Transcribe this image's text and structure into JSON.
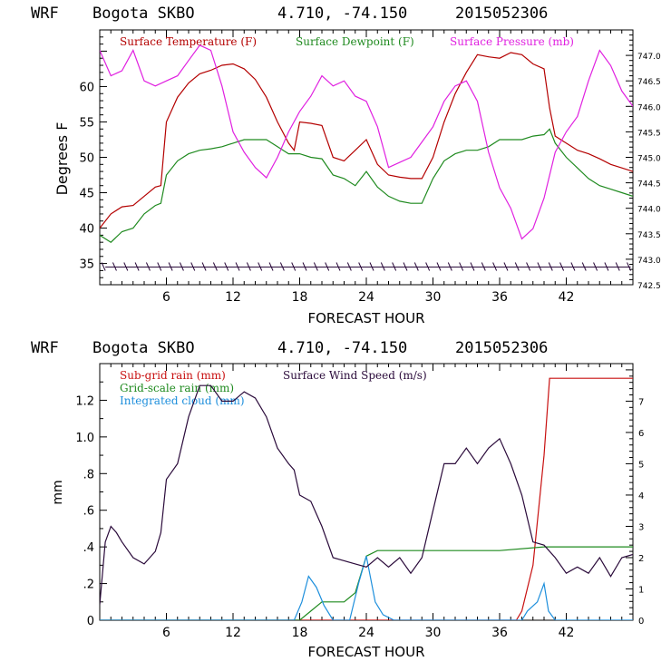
{
  "colors": {
    "temperature": "#b40000",
    "dewpoint": "#1f8a1f",
    "pressure": "#e020e0",
    "subgrid": "#c81010",
    "gridscale": "#1f8a1f",
    "cloud": "#1e8fdc",
    "wind": "#2a0a3a"
  },
  "chart_data": [
    {
      "type": "line",
      "header": {
        "model": "WRF",
        "station": "Bogota SKBO",
        "coords": "4.710, -74.150",
        "init": "2015052306"
      },
      "xlabel": "FORECAST HOUR",
      "ylabel": "Degrees F",
      "xlim": [
        0,
        48
      ],
      "ylim": [
        32,
        68
      ],
      "y2lim": [
        742.5,
        747.5
      ],
      "x_ticks": [
        "6",
        "12",
        "18",
        "24",
        "30",
        "36",
        "42"
      ],
      "y_ticks": [
        "35",
        "40",
        "45",
        "50",
        "55",
        "60"
      ],
      "y2_ticks": [
        "742.5",
        "743.0",
        "743.5",
        "744.0",
        "744.5",
        "745.0",
        "745.5",
        "746.0",
        "746.5",
        "747.0"
      ],
      "legend": [
        "Surface Temperature (F)",
        "Surface Dewpoint (F)",
        "Surface Pressure (mb)"
      ],
      "wind_barbs": {
        "y": 34.5,
        "count": 48
      },
      "series": [
        {
          "name": "Surface Temperature (F)",
          "color_key": "temperature",
          "axis": "left",
          "x": [
            0,
            1,
            2,
            3,
            4,
            5,
            5.5,
            6,
            7,
            8,
            9,
            10,
            11,
            12,
            13,
            14,
            15,
            16,
            17,
            17.5,
            18,
            19,
            20,
            21,
            22,
            23,
            24,
            25,
            26,
            27,
            28,
            29,
            30,
            31,
            32,
            33,
            34,
            35,
            36,
            37,
            38,
            39,
            40,
            40.5,
            41,
            42,
            43,
            44,
            45,
            46,
            47,
            48
          ],
          "values": [
            40,
            42,
            43,
            43.2,
            44.5,
            45.8,
            46,
            55,
            58.5,
            60.5,
            61.8,
            62.3,
            63,
            63.2,
            62.5,
            61,
            58.5,
            55,
            52,
            51,
            55,
            54.8,
            54.5,
            50,
            49.5,
            51,
            52.5,
            49,
            47.5,
            47.2,
            47,
            47,
            50,
            55,
            59,
            62,
            64.5,
            64.2,
            64,
            64.8,
            64.5,
            63.2,
            62.5,
            57,
            53,
            52,
            51,
            50.5,
            49.8,
            49,
            48.5,
            48
          ]
        },
        {
          "name": "Surface Dewpoint (F)",
          "color_key": "dewpoint",
          "axis": "left",
          "x": [
            0,
            1,
            2,
            3,
            4,
            5,
            5.5,
            6,
            7,
            8,
            9,
            10,
            11,
            12,
            13,
            14,
            15,
            16,
            17,
            18,
            19,
            20,
            21,
            22,
            23,
            24,
            25,
            26,
            27,
            28,
            29,
            30,
            31,
            32,
            33,
            34,
            35,
            36,
            37,
            38,
            39,
            40,
            40.5,
            41,
            42,
            43,
            44,
            45,
            46,
            47,
            48
          ],
          "values": [
            39,
            38,
            39.5,
            40,
            42,
            43.2,
            43.5,
            47.5,
            49.5,
            50.5,
            51,
            51.2,
            51.5,
            52,
            52.5,
            52.5,
            52.5,
            51.5,
            50.5,
            50.5,
            50,
            49.8,
            47.5,
            47,
            46,
            48,
            45.8,
            44.5,
            43.8,
            43.5,
            43.5,
            47,
            49.5,
            50.5,
            51,
            51,
            51.5,
            52.5,
            52.5,
            52.5,
            53,
            53.2,
            54,
            52,
            50,
            48.5,
            47,
            46,
            45.5,
            45,
            44.5
          ]
        },
        {
          "name": "Surface Pressure (mb)",
          "color_key": "pressure",
          "axis": "right",
          "x": [
            0,
            1,
            2,
            3,
            4,
            5,
            6,
            7,
            8,
            9,
            10,
            11,
            12,
            13,
            14,
            15,
            16,
            17,
            18,
            19,
            20,
            21,
            22,
            23,
            24,
            25,
            26,
            27,
            28,
            29,
            30,
            31,
            32,
            33,
            34,
            35,
            36,
            37,
            38,
            39,
            40,
            41,
            42,
            43,
            44,
            45,
            46,
            47,
            48
          ],
          "values": [
            747.1,
            746.6,
            746.7,
            747.1,
            746.5,
            746.4,
            746.5,
            746.6,
            746.9,
            747.2,
            747.1,
            746.4,
            745.5,
            745.1,
            744.8,
            744.6,
            745.0,
            745.5,
            745.9,
            746.2,
            746.6,
            746.4,
            746.5,
            746.2,
            746.1,
            745.6,
            744.8,
            744.9,
            745.0,
            745.3,
            745.6,
            746.1,
            746.4,
            746.5,
            746.1,
            745.1,
            744.4,
            744.0,
            743.4,
            743.6,
            744.2,
            745.1,
            745.5,
            745.8,
            746.5,
            747.1,
            746.8,
            746.3,
            746.0
          ]
        }
      ]
    },
    {
      "type": "line",
      "header": {
        "model": "WRF",
        "station": "Bogota SKBO",
        "coords": "4.710, -74.150",
        "init": "2015052306"
      },
      "xlabel": "FORECAST HOUR",
      "ylabel": "mm",
      "xlim": [
        0,
        48
      ],
      "ylim": [
        0,
        1.4
      ],
      "y2lim": [
        0,
        8.2
      ],
      "x_ticks": [
        "6",
        "12",
        "18",
        "24",
        "30",
        "36",
        "42"
      ],
      "y_ticks": [
        "0",
        ".2",
        ".4",
        ".6",
        ".8",
        "1.0",
        "1.2"
      ],
      "y2_ticks": [
        "0",
        "1",
        "2",
        "3",
        "4",
        "5",
        "6",
        "7"
      ],
      "legend": [
        "Sub-grid rain (mm)",
        "Grid-scale rain (mm)",
        "Integrated cloud (mm)",
        "Surface Wind Speed (m/s)"
      ],
      "series": [
        {
          "name": "Sub-grid rain (mm)",
          "color_key": "subgrid",
          "axis": "left",
          "x": [
            0,
            37.5,
            38,
            39,
            40,
            40.5,
            41,
            48
          ],
          "values": [
            0,
            0,
            0.05,
            0.3,
            0.9,
            1.32,
            1.32,
            1.32
          ]
        },
        {
          "name": "Grid-scale rain (mm)",
          "color_key": "gridscale",
          "axis": "left",
          "x": [
            0,
            18,
            19,
            20,
            22,
            23,
            24,
            25,
            30,
            36,
            40,
            48
          ],
          "values": [
            0,
            0,
            0.05,
            0.1,
            0.1,
            0.15,
            0.35,
            0.38,
            0.38,
            0.38,
            0.4,
            0.4
          ]
        },
        {
          "name": "Integrated cloud (mm)",
          "color_key": "cloud",
          "axis": "left",
          "x": [
            0,
            17.5,
            18.2,
            18.8,
            19.5,
            20.2,
            21,
            22.5,
            23.3,
            24,
            24.8,
            25.5,
            26.5,
            38,
            38.5,
            39.4,
            40,
            40.4,
            41,
            48
          ],
          "values": [
            0,
            0,
            0.1,
            0.24,
            0.18,
            0.08,
            0,
            0,
            0.2,
            0.35,
            0.1,
            0.03,
            0,
            0,
            0.05,
            0.1,
            0.2,
            0.05,
            0,
            0
          ]
        },
        {
          "name": "Surface Wind Speed (m/s)",
          "color_key": "wind",
          "axis": "right",
          "x": [
            0,
            0.5,
            1,
            1.5,
            2,
            3,
            4,
            5,
            5.5,
            6,
            7,
            8,
            9,
            10,
            11,
            12,
            13,
            14,
            15,
            16,
            17,
            17.5,
            18,
            19,
            20,
            21,
            22,
            23,
            24,
            25,
            26,
            27,
            28,
            29,
            30,
            31,
            32,
            33,
            34,
            35,
            36,
            37,
            38,
            39,
            40,
            41,
            42,
            43,
            44,
            45,
            46,
            47,
            48
          ],
          "values": [
            0.5,
            2.5,
            3.0,
            2.8,
            2.5,
            2.0,
            1.8,
            2.2,
            2.8,
            4.5,
            5.0,
            6.5,
            7.5,
            7.5,
            7.0,
            7.0,
            7.3,
            7.1,
            6.5,
            5.5,
            5.0,
            4.8,
            4.0,
            3.8,
            3.0,
            2.0,
            1.9,
            1.8,
            1.7,
            2.0,
            1.7,
            2.0,
            1.5,
            2.0,
            3.5,
            5.0,
            5.0,
            5.5,
            5.0,
            5.5,
            5.8,
            5.0,
            4.0,
            2.5,
            2.4,
            2.0,
            1.5,
            1.7,
            1.5,
            2.0,
            1.4,
            2.0,
            2.1
          ]
        }
      ]
    }
  ]
}
